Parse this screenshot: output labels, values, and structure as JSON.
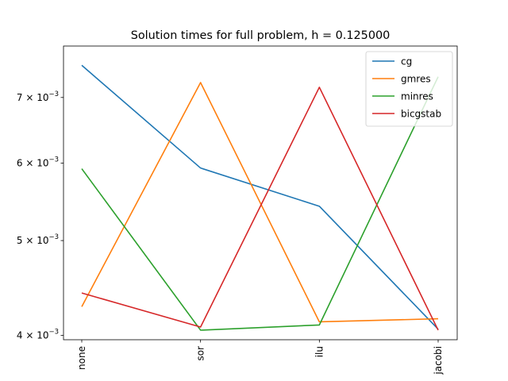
{
  "chart_data": {
    "type": "line",
    "title": "Solution times for full problem, h = 0.125000",
    "xlabel": "",
    "ylabel": "",
    "yscale": "log",
    "categories": [
      "none",
      "sor",
      "ilu",
      "jacobi"
    ],
    "ylim": [
      0.00396,
      0.0079
    ],
    "yticks": [
      {
        "value": 0.004,
        "label": "4 × 10",
        "exp": "−3"
      },
      {
        "value": 0.005,
        "label": "5 × 10",
        "exp": "−3"
      },
      {
        "value": 0.006,
        "label": "6 × 10",
        "exp": "−3"
      },
      {
        "value": 0.007,
        "label": "7 × 10",
        "exp": "−3"
      }
    ],
    "grid": false,
    "legend_position": "top-right",
    "series": [
      {
        "name": "cg",
        "color": "#1f77b4",
        "values": [
          0.00755,
          0.00593,
          0.00542,
          0.00406
        ]
      },
      {
        "name": "gmres",
        "color": "#ff7f0e",
        "values": [
          0.00428,
          0.00725,
          0.00413,
          0.00416
        ]
      },
      {
        "name": "minres",
        "color": "#2ca02c",
        "values": [
          0.00592,
          0.00405,
          0.0041,
          0.00735
        ]
      },
      {
        "name": "bicgstab",
        "color": "#d62728",
        "values": [
          0.00442,
          0.00408,
          0.00717,
          0.00405
        ]
      }
    ]
  }
}
